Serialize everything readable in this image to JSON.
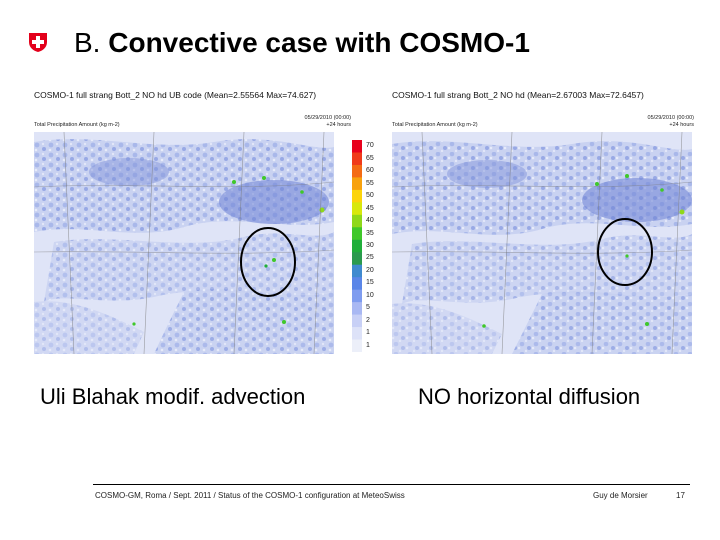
{
  "slide": {
    "title_prefix": "B.",
    "title_main": "Convective case with COSMO-1",
    "logo_icon": "swiss-cross-icon",
    "brand_color": "#e3001b"
  },
  "panels": {
    "left": {
      "title": "COSMO-1 full strang Bott_2 NO hd UB code (Mean=2.55564 Max=74.627)",
      "date_line1": "05/29/2010 (00:00)",
      "date_line2": "+24 hours",
      "field_label": "Total Precipitation Amount (kg m-2)"
    },
    "right": {
      "title": "COSMO-1 full strang Bott_2 NO hd (Mean=2.67003 Max=72.6457)",
      "date_line1": "05/29/2010 (00:00)",
      "date_line2": "+24 hours",
      "field_label": "Total Precipitation Amount (kg m-2)"
    }
  },
  "colorbar": {
    "labels": [
      "70",
      "65",
      "60",
      "55",
      "50",
      "45",
      "40",
      "35",
      "30",
      "25",
      "20",
      "15",
      "10",
      "5",
      "2",
      "1",
      "1"
    ],
    "colors": [
      "#e8001c",
      "#f03a1a",
      "#f46b14",
      "#f8a20e",
      "#fcd40a",
      "#d8e80c",
      "#8fd81a",
      "#3fc82a",
      "#1fae3a",
      "#2a9a4e",
      "#3f8acf",
      "#5a86e8",
      "#7f9cef",
      "#a9b8f3",
      "#c8d0f6",
      "#dde2f8",
      "#eceff9"
    ]
  },
  "captions": {
    "left": "Uli Blahak modif. advection",
    "right": "NO horizontal diffusion"
  },
  "footer": {
    "left": "COSMO-GM, Roma / Sept. 2011 / Status of the COSMO-1 configuration at MeteoSwiss",
    "author": "Guy de Morsier",
    "page": "17"
  }
}
